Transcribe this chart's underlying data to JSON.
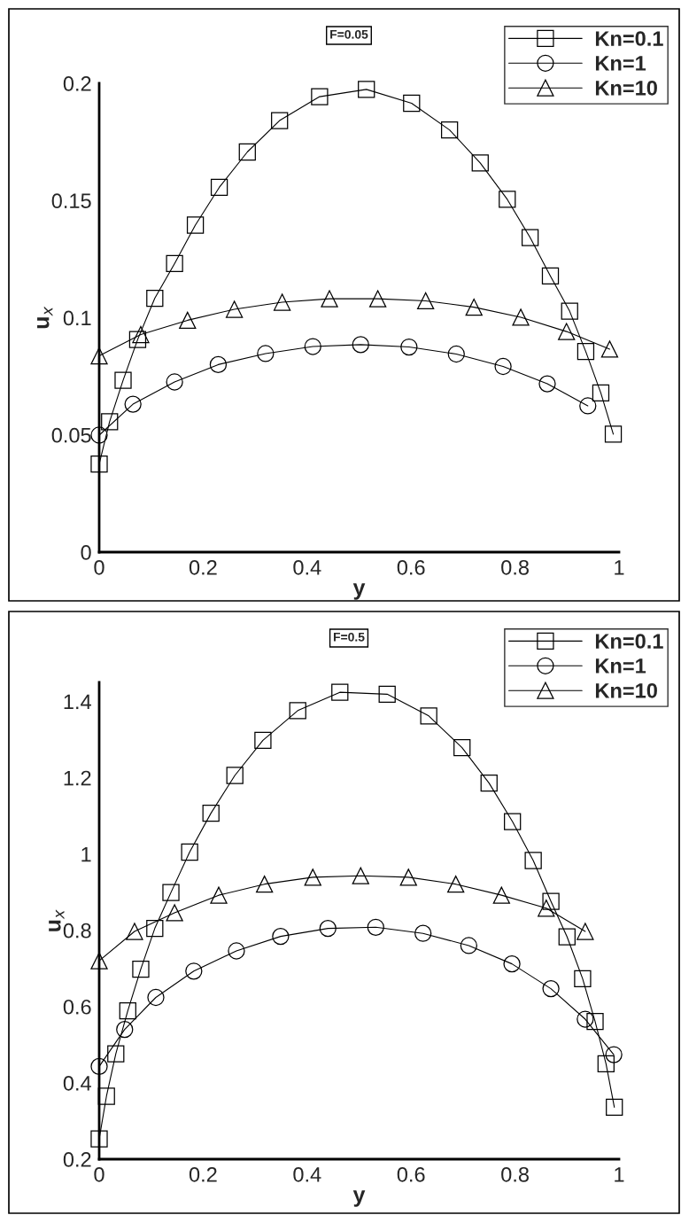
{
  "chart_data": [
    {
      "type": "line",
      "title": "F=0.05",
      "xlabel": "y",
      "ylabel": "u$_{x}$",
      "xlim": [
        0,
        1
      ],
      "ylim": [
        0,
        0.2
      ],
      "xticks": [
        0,
        0.2,
        0.4,
        0.6,
        0.8,
        1
      ],
      "yticks": [
        0,
        0.05,
        0.1,
        0.15,
        0.2
      ],
      "legend": "top right",
      "grid": false,
      "line_style": "solid",
      "series": [
        {
          "name": "Kn=0.1",
          "color": "#000000",
          "marker": "square",
          "x": [
            0,
            0.02,
            0.046,
            0.074,
            0.107,
            0.145,
            0.185,
            0.231,
            0.285,
            0.347,
            0.424,
            0.514,
            0.601,
            0.674,
            0.733,
            0.785,
            0.829,
            0.868,
            0.905,
            0.936,
            0.965,
            0.989
          ],
          "values": [
            0.0376,
            0.0556,
            0.0733,
            0.0907,
            0.1083,
            0.1231,
            0.1395,
            0.1556,
            0.1707,
            0.1841,
            0.1943,
            0.1974,
            0.1915,
            0.1801,
            0.166,
            0.1505,
            0.1342,
            0.1178,
            0.1028,
            0.0856,
            0.0679,
            0.0503
          ]
        },
        {
          "name": "Kn=1",
          "color": "#000000",
          "marker": "circle",
          "x": [
            0,
            0.065,
            0.145,
            0.229,
            0.32,
            0.411,
            0.503,
            0.596,
            0.687,
            0.777,
            0.862,
            0.94
          ],
          "values": [
            0.0499,
            0.0631,
            0.0726,
            0.08,
            0.0847,
            0.0877,
            0.0885,
            0.0875,
            0.0845,
            0.0792,
            0.0718,
            0.0624
          ]
        },
        {
          "name": "Kn=10",
          "color": "#000000",
          "marker": "triangle",
          "x": [
            0,
            0.08,
            0.17,
            0.26,
            0.352,
            0.443,
            0.536,
            0.628,
            0.721,
            0.811,
            0.899,
            0.982
          ],
          "values": [
            0.0837,
            0.0928,
            0.0989,
            0.1036,
            0.1066,
            0.1081,
            0.1081,
            0.1072,
            0.1045,
            0.1002,
            0.0941,
            0.0866
          ]
        }
      ]
    },
    {
      "type": "line",
      "title": "F=0.5",
      "xlabel": "y",
      "ylabel": "u$_{x}$",
      "xlim": [
        0,
        1
      ],
      "ylim": [
        0.2,
        1.45
      ],
      "xticks": [
        0,
        0.2,
        0.4,
        0.6,
        0.8,
        1
      ],
      "yticks": [
        0.2,
        0.4,
        0.6,
        0.8,
        1,
        1.2,
        1.4
      ],
      "legend": "top right",
      "grid": false,
      "line_style": "solid",
      "series": [
        {
          "name": "Kn=0.1",
          "color": "#000000",
          "marker": "square",
          "x": [
            0,
            0.014,
            0.032,
            0.055,
            0.08,
            0.107,
            0.138,
            0.174,
            0.215,
            0.261,
            0.315,
            0.382,
            0.463,
            0.554,
            0.634,
            0.698,
            0.75,
            0.795,
            0.835,
            0.869,
            0.9,
            0.93,
            0.954,
            0.975,
            0.991
          ],
          "values": [
            0.253,
            0.365,
            0.476,
            0.589,
            0.698,
            0.805,
            0.899,
            1.005,
            1.107,
            1.206,
            1.298,
            1.376,
            1.424,
            1.419,
            1.362,
            1.279,
            1.186,
            1.085,
            0.983,
            0.876,
            0.783,
            0.673,
            0.561,
            0.45,
            0.336
          ]
        },
        {
          "name": "Kn=1",
          "color": "#000000",
          "marker": "circle",
          "x": [
            0,
            0.049,
            0.109,
            0.182,
            0.264,
            0.349,
            0.44,
            0.532,
            0.623,
            0.711,
            0.794,
            0.869,
            0.935,
            0.99
          ],
          "values": [
            0.443,
            0.54,
            0.624,
            0.693,
            0.746,
            0.784,
            0.805,
            0.808,
            0.792,
            0.76,
            0.712,
            0.647,
            0.567,
            0.474
          ]
        },
        {
          "name": "Kn=10",
          "color": "#000000",
          "marker": "triangle",
          "x": [
            0,
            0.068,
            0.145,
            0.23,
            0.318,
            0.411,
            0.503,
            0.595,
            0.686,
            0.774,
            0.86,
            0.935
          ],
          "values": [
            0.72,
            0.797,
            0.846,
            0.892,
            0.921,
            0.939,
            0.943,
            0.939,
            0.921,
            0.892,
            0.858,
            0.797
          ]
        }
      ]
    }
  ]
}
